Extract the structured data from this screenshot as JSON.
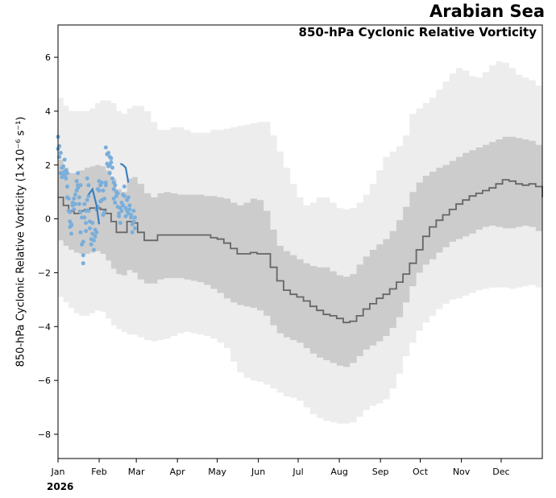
{
  "header": {
    "region": "Arabian Sea",
    "title": "850-hPa Cyclonic Relative Vorticity",
    "year": "2026"
  },
  "chart_data": {
    "type": "line",
    "ylabel": "850-hPa Cyclonic Relative Vorticity (1×10⁻⁶ s⁻¹)",
    "ylim": [
      -8.9,
      7.2
    ],
    "yticks": [
      -8,
      -6,
      -4,
      -2,
      0,
      2,
      4,
      6
    ],
    "xlim": [
      1,
      366
    ],
    "xticks": [
      {
        "label": "Jan",
        "day": 1
      },
      {
        "label": "Feb",
        "day": 32
      },
      {
        "label": "Mar",
        "day": 60
      },
      {
        "label": "Apr",
        "day": 91
      },
      {
        "label": "May",
        "day": 121
      },
      {
        "label": "Jun",
        "day": 152
      },
      {
        "label": "Jul",
        "day": 182
      },
      {
        "label": "Aug",
        "day": 213
      },
      {
        "label": "Sep",
        "day": 244
      },
      {
        "label": "Oct",
        "day": 274
      },
      {
        "label": "Nov",
        "day": 305
      },
      {
        "label": "Dec",
        "day": 335
      }
    ],
    "grid": false,
    "colors": {
      "outer_band": "#ededed",
      "inner_band": "#cccccc",
      "climatology": "#666666",
      "observations": "#7aaedb",
      "smoothed": "#3a80c0"
    },
    "climatology_mean": {
      "day": [
        1,
        5,
        9,
        13,
        17,
        21,
        25,
        29,
        33,
        37,
        41,
        45,
        49,
        53,
        57,
        61,
        66,
        71,
        76,
        81,
        86,
        91,
        96,
        101,
        106,
        111,
        116,
        121,
        126,
        131,
        136,
        141,
        146,
        151,
        156,
        161,
        166,
        171,
        176,
        181,
        186,
        191,
        196,
        201,
        206,
        211,
        216,
        221,
        226,
        231,
        236,
        241,
        246,
        251,
        256,
        261,
        266,
        271,
        276,
        281,
        286,
        291,
        296,
        301,
        306,
        311,
        316,
        321,
        326,
        331,
        336,
        341,
        346,
        351,
        356,
        361,
        366
      ],
      "value": [
        0.8,
        0.5,
        0.3,
        0.2,
        0.3,
        0.35,
        0.4,
        0.4,
        0.35,
        0.2,
        -0.1,
        -0.5,
        -0.5,
        -0.1,
        -0.15,
        -0.5,
        -0.8,
        -0.8,
        -0.6,
        -0.6,
        -0.6,
        -0.6,
        -0.6,
        -0.6,
        -0.6,
        -0.6,
        -0.7,
        -0.75,
        -0.9,
        -1.1,
        -1.3,
        -1.3,
        -1.25,
        -1.3,
        -1.3,
        -1.8,
        -2.3,
        -2.65,
        -2.8,
        -2.9,
        -3.05,
        -3.25,
        -3.4,
        -3.55,
        -3.6,
        -3.7,
        -3.85,
        -3.8,
        -3.6,
        -3.35,
        -3.15,
        -2.95,
        -2.8,
        -2.6,
        -2.35,
        -2.05,
        -1.65,
        -1.15,
        -0.65,
        -0.3,
        -0.05,
        0.15,
        0.35,
        0.55,
        0.7,
        0.85,
        0.95,
        1.05,
        1.15,
        1.3,
        1.45,
        1.4,
        1.3,
        1.25,
        1.3,
        1.2,
        0.8
      ]
    },
    "climatology_inner_band": {
      "day": [
        1,
        5,
        9,
        13,
        17,
        21,
        25,
        29,
        33,
        37,
        41,
        45,
        49,
        53,
        57,
        61,
        66,
        71,
        76,
        81,
        86,
        91,
        96,
        101,
        106,
        111,
        116,
        121,
        126,
        131,
        136,
        141,
        146,
        151,
        156,
        161,
        166,
        171,
        176,
        181,
        186,
        191,
        196,
        201,
        206,
        211,
        216,
        221,
        226,
        231,
        236,
        241,
        246,
        251,
        256,
        261,
        266,
        271,
        276,
        281,
        286,
        291,
        296,
        301,
        306,
        311,
        316,
        321,
        326,
        331,
        336,
        341,
        346,
        351,
        356,
        361,
        366
      ],
      "upper": [
        2.2,
        1.9,
        1.7,
        1.7,
        1.8,
        1.9,
        1.95,
        2.0,
        1.95,
        1.8,
        1.5,
        1.1,
        1.0,
        1.5,
        1.55,
        1.3,
        0.95,
        0.8,
        0.95,
        1.0,
        0.95,
        0.9,
        0.9,
        0.9,
        0.9,
        0.85,
        0.85,
        0.8,
        0.75,
        0.6,
        0.5,
        0.6,
        0.75,
        0.7,
        0.3,
        -0.4,
        -1.0,
        -1.2,
        -1.35,
        -1.5,
        -1.65,
        -1.75,
        -1.8,
        -1.8,
        -1.95,
        -2.1,
        -2.15,
        -2.05,
        -1.7,
        -1.4,
        -1.15,
        -0.95,
        -0.75,
        -0.45,
        -0.05,
        0.45,
        1.0,
        1.35,
        1.6,
        1.75,
        1.9,
        2.0,
        2.15,
        2.3,
        2.45,
        2.55,
        2.65,
        2.75,
        2.85,
        2.95,
        3.05,
        3.05,
        3.0,
        2.95,
        2.9,
        2.75,
        2.6
      ],
      "lower": [
        -0.8,
        -1.0,
        -1.15,
        -1.25,
        -1.3,
        -1.3,
        -1.25,
        -1.2,
        -1.3,
        -1.55,
        -1.85,
        -2.05,
        -2.1,
        -1.9,
        -2.0,
        -2.25,
        -2.4,
        -2.4,
        -2.25,
        -2.2,
        -2.2,
        -2.2,
        -2.25,
        -2.3,
        -2.35,
        -2.45,
        -2.6,
        -2.75,
        -2.95,
        -3.1,
        -3.2,
        -3.25,
        -3.3,
        -3.4,
        -3.6,
        -3.95,
        -4.25,
        -4.4,
        -4.5,
        -4.6,
        -4.8,
        -5.0,
        -5.15,
        -5.25,
        -5.35,
        -5.45,
        -5.5,
        -5.35,
        -5.1,
        -4.85,
        -4.7,
        -4.55,
        -4.35,
        -4.05,
        -3.65,
        -3.1,
        -2.5,
        -2.0,
        -1.7,
        -1.5,
        -1.25,
        -1.05,
        -0.85,
        -0.75,
        -0.65,
        -0.55,
        -0.4,
        -0.3,
        -0.25,
        -0.3,
        -0.35,
        -0.35,
        -0.3,
        -0.25,
        -0.3,
        -0.45,
        -0.65
      ]
    },
    "climatology_outer_band": {
      "day": [
        1,
        5,
        9,
        13,
        17,
        21,
        25,
        29,
        33,
        37,
        41,
        45,
        49,
        53,
        57,
        61,
        66,
        71,
        76,
        81,
        86,
        91,
        96,
        101,
        106,
        111,
        116,
        121,
        126,
        131,
        136,
        141,
        146,
        151,
        156,
        161,
        166,
        171,
        176,
        181,
        186,
        191,
        196,
        201,
        206,
        211,
        216,
        221,
        226,
        231,
        236,
        241,
        246,
        251,
        256,
        261,
        266,
        271,
        276,
        281,
        286,
        291,
        296,
        301,
        306,
        311,
        316,
        321,
        326,
        331,
        336,
        341,
        346,
        351,
        356,
        361,
        366
      ],
      "upper": [
        4.5,
        4.2,
        4.0,
        4.0,
        4.0,
        4.0,
        4.1,
        4.3,
        4.4,
        4.4,
        4.3,
        4.0,
        3.9,
        4.1,
        4.2,
        4.2,
        4.0,
        3.6,
        3.3,
        3.3,
        3.4,
        3.4,
        3.3,
        3.2,
        3.2,
        3.2,
        3.3,
        3.3,
        3.35,
        3.4,
        3.45,
        3.5,
        3.55,
        3.6,
        3.6,
        3.1,
        2.5,
        1.9,
        1.3,
        0.8,
        0.5,
        0.6,
        0.8,
        0.8,
        0.6,
        0.4,
        0.35,
        0.4,
        0.6,
        0.9,
        1.3,
        1.8,
        2.3,
        2.5,
        2.7,
        3.1,
        3.9,
        4.1,
        4.3,
        4.5,
        4.8,
        5.1,
        5.4,
        5.6,
        5.5,
        5.3,
        5.25,
        5.45,
        5.7,
        5.85,
        5.8,
        5.6,
        5.35,
        5.25,
        5.15,
        4.95,
        4.7
      ],
      "lower": [
        -2.9,
        -3.1,
        -3.3,
        -3.5,
        -3.6,
        -3.6,
        -3.5,
        -3.4,
        -3.45,
        -3.7,
        -3.95,
        -4.1,
        -4.2,
        -4.3,
        -4.3,
        -4.4,
        -4.5,
        -4.55,
        -4.5,
        -4.45,
        -4.35,
        -4.25,
        -4.2,
        -4.25,
        -4.3,
        -4.35,
        -4.45,
        -4.6,
        -4.8,
        -5.3,
        -5.7,
        -5.9,
        -6.0,
        -6.05,
        -6.15,
        -6.3,
        -6.45,
        -6.6,
        -6.65,
        -6.75,
        -7.0,
        -7.25,
        -7.4,
        -7.5,
        -7.55,
        -7.6,
        -7.6,
        -7.55,
        -7.35,
        -7.1,
        -6.95,
        -6.85,
        -6.7,
        -6.3,
        -5.75,
        -5.1,
        -4.6,
        -4.15,
        -3.85,
        -3.6,
        -3.35,
        -3.15,
        -3.0,
        -2.95,
        -2.85,
        -2.75,
        -2.65,
        -2.6,
        -2.55,
        -2.55,
        -2.55,
        -2.6,
        -2.55,
        -2.5,
        -2.45,
        -2.55,
        -2.75
      ]
    },
    "observations": {
      "day": [
        1,
        1,
        2,
        2,
        3,
        3,
        4,
        4,
        5,
        5,
        6,
        6,
        6,
        7,
        7,
        8,
        8,
        8,
        9,
        9,
        10,
        10,
        10,
        11,
        11,
        11,
        12,
        12,
        13,
        13,
        14,
        14,
        15,
        15,
        16,
        16,
        16,
        17,
        17,
        18,
        18,
        18,
        19,
        19,
        20,
        20,
        20,
        21,
        21,
        22,
        22,
        22,
        23,
        23,
        24,
        24,
        24,
        25,
        25,
        26,
        26,
        27,
        27,
        28,
        28,
        29,
        29,
        30,
        30,
        31,
        31,
        32,
        32,
        33,
        33,
        34,
        34,
        35,
        35,
        36,
        36,
        37,
        37,
        37,
        38,
        38,
        39,
        39,
        40,
        40,
        40,
        41,
        41,
        42,
        42,
        43,
        43,
        43,
        44,
        44,
        45,
        45,
        46,
        46,
        47,
        47,
        48,
        48,
        49,
        49,
        50,
        50,
        51,
        51,
        52,
        52,
        53,
        53,
        54,
        54,
        55,
        55,
        56,
        56,
        57,
        57,
        58,
        58,
        59,
        59
      ],
      "value": [
        3.05,
        2.6,
        2.7,
        2.3,
        2.45,
        1.7,
        1.9,
        1.55,
        1.95,
        1.7,
        2.2,
        1.75,
        1.6,
        1.8,
        1.5,
        1.7,
        1.2,
        0.8,
        0.75,
        0.3,
        0.25,
        -0.1,
        -0.3,
        -0.25,
        -0.55,
        -0.2,
        0.5,
        0.6,
        0.75,
        0.35,
        0.55,
        0.9,
        1.05,
        1.4,
        1.7,
        1.15,
        1.25,
        0.8,
        0.55,
        1.25,
        0.25,
        -0.5,
        0.05,
        -0.95,
        -1.35,
        -1.65,
        -0.85,
        0.05,
        0.55,
        0.3,
        -0.15,
        -0.45,
        0.7,
        1.5,
        0.3,
        0.85,
        1.25,
        -0.1,
        -0.35,
        -0.75,
        -0.95,
        -0.15,
        -0.55,
        -1.15,
        -0.8,
        -0.4,
        -0.65,
        -0.5,
        0.35,
        1.1,
        0.45,
        1.4,
        1.05,
        0.65,
        1.25,
        0.7,
        1.35,
        0.15,
        1.05,
        0.25,
        0.75,
        1.35,
        1.25,
        2.65,
        2.4,
        2.05,
        2.45,
        1.95,
        2.3,
        2.0,
        1.7,
        2.1,
        2.25,
        1.5,
        1.9,
        1.35,
        1.1,
        0.75,
        1.25,
        0.6,
        1.0,
        0.85,
        0.45,
        0.95,
        0.2,
        0.1,
        -0.15,
        0.4,
        0.6,
        0.3,
        0.9,
        0.5,
        1.2,
        0.85,
        0.1,
        0.4,
        0.3,
        0.7,
        0.2,
        0.8,
        0.5,
        0.35,
        0.15,
        0.05,
        -0.2,
        -0.5,
        -0.1,
        0.3,
        0.05,
        -0.35
      ]
    },
    "smoothed_segments": [
      {
        "day": [
          24,
          27,
          30,
          32
        ],
        "value": [
          0.9,
          1.1,
          0.5,
          -0.2
        ]
      },
      {
        "day": [
          48,
          50,
          52,
          54
        ],
        "value": [
          2.05,
          2.0,
          1.9,
          1.35
        ]
      }
    ]
  }
}
